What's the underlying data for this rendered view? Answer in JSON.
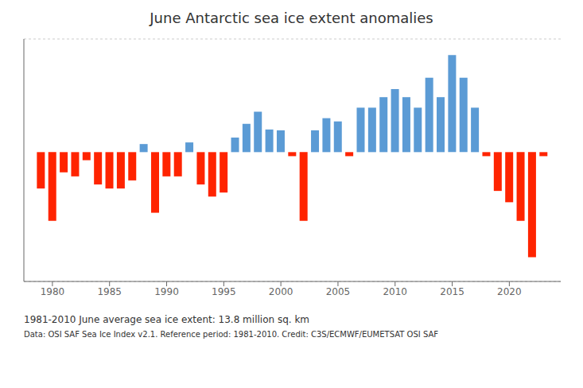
{
  "chart_data": {
    "type": "bar",
    "title": "June Antarctic sea ice extent anomalies",
    "x": [
      1979,
      1980,
      1981,
      1982,
      1983,
      1984,
      1985,
      1986,
      1987,
      1988,
      1989,
      1990,
      1991,
      1992,
      1993,
      1994,
      1995,
      1996,
      1997,
      1998,
      1999,
      2000,
      2001,
      2002,
      2003,
      2004,
      2005,
      2006,
      2007,
      2008,
      2009,
      2010,
      2011,
      2012,
      2013,
      2014,
      2015,
      2016,
      2017,
      2018,
      2019,
      2020,
      2021,
      2022,
      2023
    ],
    "values": [
      -0.45,
      -0.85,
      -0.25,
      -0.3,
      -0.1,
      -0.4,
      -0.45,
      -0.45,
      -0.35,
      0.1,
      -0.75,
      -0.3,
      -0.3,
      0.12,
      -0.4,
      -0.55,
      -0.5,
      0.18,
      0.35,
      0.5,
      0.28,
      0.27,
      -0.05,
      -0.85,
      0.27,
      0.42,
      0.38,
      -0.05,
      0.55,
      0.55,
      0.68,
      0.78,
      0.68,
      0.55,
      0.92,
      0.68,
      1.2,
      0.92,
      0.55,
      -0.05,
      -0.48,
      -0.62,
      -0.85,
      -1.3,
      -0.05
    ],
    "colors": [
      "#FF2400",
      "#FF2400",
      "#FF2400",
      "#FF2400",
      "#FF2400",
      "#FF2400",
      "#FF2400",
      "#FF2400",
      "#FF2400",
      "#5B9BD5",
      "#FF2400",
      "#FF2400",
      "#FF2400",
      "#5B9BD5",
      "#FF2400",
      "#FF2400",
      "#FF2400",
      "#5B9BD5",
      "#5B9BD5",
      "#5B9BD5",
      "#5B9BD5",
      "#5B9BD5",
      "#FF2400",
      "#FF2400",
      "#5B9BD5",
      "#5B9BD5",
      "#5B9BD5",
      "#FF2400",
      "#5B9BD5",
      "#5B9BD5",
      "#5B9BD5",
      "#5B9BD5",
      "#5B9BD5",
      "#5B9BD5",
      "#5B9BD5",
      "#5B9BD5",
      "#5B9BD5",
      "#5B9BD5",
      "#5B9BD5",
      "#FF2400",
      "#FF2400",
      "#FF2400",
      "#FF2400",
      "#FF2400",
      "#FF2400"
    ],
    "annotations": [
      "1981-2010 June average sea ice extent: 13.8 million sq. km",
      "Data: OSI SAF Sea Ice Index v2.1.  Reference period: 1981-2010.  Credit: C3S/ECMWF/EUMETSAT OSI SAF"
    ],
    "xlim": [
      1977.5,
      2024.5
    ],
    "xticks": [
      1980,
      1985,
      1990,
      1995,
      2000,
      2005,
      2010,
      2015,
      2020
    ],
    "ylim": [
      -1.6,
      1.4
    ],
    "yticks": [
      -1.5,
      -1.0,
      -0.5,
      0.0,
      0.5,
      1.0
    ],
    "grid": true,
    "tick_labels": "x"
  }
}
